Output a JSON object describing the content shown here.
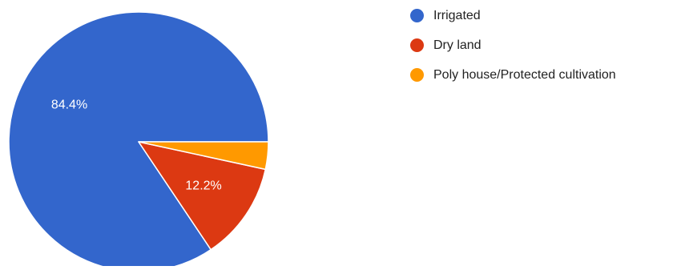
{
  "chart_data": {
    "type": "pie",
    "slices": [
      {
        "label": "Irrigated",
        "value": 84.4,
        "color": "#3366cc",
        "data_label": "84.4%"
      },
      {
        "label": "Dry land",
        "value": 12.2,
        "color": "#dc3912",
        "data_label": "12.2%"
      },
      {
        "label": "Poly house/Protected cultivation",
        "value": 3.4,
        "color": "#ff9900",
        "data_label": ""
      }
    ],
    "start": "3 o'clock",
    "direction": "counterclockwise",
    "legend_position": "right"
  }
}
